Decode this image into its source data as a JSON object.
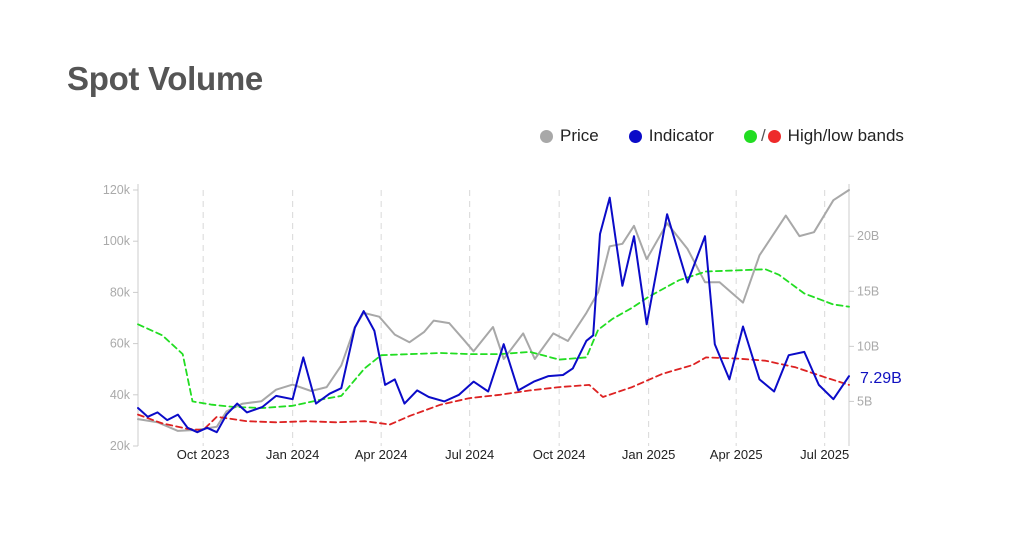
{
  "header": {
    "title": "Spot Volume"
  },
  "legend": {
    "price": "Price",
    "indicator": "Indicator",
    "bands_slash": "/",
    "bands": "High/low bands"
  },
  "colors": {
    "price": "#a8a8a8",
    "indicator": "#0b0bc8",
    "high_band": "#22dd22",
    "low_band": "#dd2222",
    "grid": "#d8d8d8",
    "axis_text": "#aaaaaa"
  },
  "chart_data": {
    "type": "line",
    "title": "Spot Volume",
    "last_value_label": "7.29B",
    "x_range": [
      "2023-07-26",
      "2025-07-26"
    ],
    "x_ticks": [
      {
        "date": "2023-10-01",
        "label": "Oct 2023"
      },
      {
        "date": "2024-01-01",
        "label": "Jan 2024"
      },
      {
        "date": "2024-04-01",
        "label": "Apr 2024"
      },
      {
        "date": "2024-07-01",
        "label": "Jul 2024"
      },
      {
        "date": "2024-10-01",
        "label": "Oct 2024"
      },
      {
        "date": "2025-01-01",
        "label": "Jan 2025"
      },
      {
        "date": "2025-04-01",
        "label": "Apr 2025"
      },
      {
        "date": "2025-07-01",
        "label": "Jul 2025"
      }
    ],
    "y_left": {
      "range": [
        20000,
        120000
      ],
      "ticks": [
        20000,
        40000,
        60000,
        80000,
        100000,
        120000
      ],
      "tick_labels": [
        "20k",
        "40k",
        "60k",
        "80k",
        "100k",
        "120k"
      ]
    },
    "y_right": {
      "range": [
        0.95,
        24.2
      ],
      "unit": "B",
      "ticks": [
        5,
        10,
        15,
        20
      ],
      "tick_labels": [
        "5B",
        "10B",
        "15B",
        "20B"
      ]
    },
    "grid": "vertical dashed at x ticks",
    "legend_position": "top-right",
    "series": [
      {
        "name": "Price",
        "axis": "left",
        "style": "solid",
        "points": [
          [
            "2023-07-26",
            30500
          ],
          [
            "2023-08-15",
            29300
          ],
          [
            "2023-09-05",
            25900
          ],
          [
            "2023-09-25",
            26300
          ],
          [
            "2023-10-15",
            27500
          ],
          [
            "2023-10-25",
            33500
          ],
          [
            "2023-11-10",
            36500
          ],
          [
            "2023-11-30",
            37500
          ],
          [
            "2023-12-15",
            42000
          ],
          [
            "2024-01-01",
            44000
          ],
          [
            "2024-01-20",
            41500
          ],
          [
            "2024-02-05",
            43000
          ],
          [
            "2024-02-20",
            51500
          ],
          [
            "2024-03-05",
            66500
          ],
          [
            "2024-03-14",
            72000
          ],
          [
            "2024-03-30",
            70500
          ],
          [
            "2024-04-15",
            63500
          ],
          [
            "2024-04-30",
            60500
          ],
          [
            "2024-05-15",
            64500
          ],
          [
            "2024-05-25",
            69000
          ],
          [
            "2024-06-10",
            68000
          ],
          [
            "2024-06-25",
            61500
          ],
          [
            "2024-07-05",
            57000
          ],
          [
            "2024-07-25",
            66500
          ],
          [
            "2024-08-05",
            54000
          ],
          [
            "2024-08-25",
            64000
          ],
          [
            "2024-09-06",
            54000
          ],
          [
            "2024-09-25",
            64000
          ],
          [
            "2024-10-10",
            61000
          ],
          [
            "2024-10-29",
            72000
          ],
          [
            "2024-11-10",
            80000
          ],
          [
            "2024-11-22",
            98000
          ],
          [
            "2024-12-05",
            99000
          ],
          [
            "2024-12-17",
            106000
          ],
          [
            "2024-12-30",
            93000
          ],
          [
            "2025-01-20",
            107000
          ],
          [
            "2025-02-10",
            97000
          ],
          [
            "2025-02-28",
            84000
          ],
          [
            "2025-03-15",
            84000
          ],
          [
            "2025-04-08",
            76000
          ],
          [
            "2025-04-25",
            94500
          ],
          [
            "2025-05-22",
            110000
          ],
          [
            "2025-06-05",
            102000
          ],
          [
            "2025-06-20",
            103500
          ],
          [
            "2025-07-10",
            116000
          ],
          [
            "2025-07-26",
            120000
          ]
        ]
      },
      {
        "name": "Indicator",
        "axis": "right",
        "style": "solid",
        "points": [
          [
            "2023-07-26",
            4.4
          ],
          [
            "2023-08-05",
            3.6
          ],
          [
            "2023-08-15",
            4.0
          ],
          [
            "2023-08-25",
            3.3
          ],
          [
            "2023-09-05",
            3.8
          ],
          [
            "2023-09-15",
            2.6
          ],
          [
            "2023-09-25",
            2.2
          ],
          [
            "2023-10-05",
            2.6
          ],
          [
            "2023-10-15",
            2.2
          ],
          [
            "2023-10-25",
            3.8
          ],
          [
            "2023-11-05",
            4.8
          ],
          [
            "2023-11-15",
            4.0
          ],
          [
            "2023-12-01",
            4.5
          ],
          [
            "2023-12-15",
            5.5
          ],
          [
            "2024-01-01",
            5.2
          ],
          [
            "2024-01-12",
            9.0
          ],
          [
            "2024-01-25",
            4.8
          ],
          [
            "2024-02-08",
            5.7
          ],
          [
            "2024-02-20",
            6.2
          ],
          [
            "2024-03-05",
            11.7
          ],
          [
            "2024-03-14",
            13.2
          ],
          [
            "2024-03-25",
            11.4
          ],
          [
            "2024-04-05",
            6.5
          ],
          [
            "2024-04-15",
            7.0
          ],
          [
            "2024-04-25",
            4.8
          ],
          [
            "2024-05-08",
            6.0
          ],
          [
            "2024-05-20",
            5.4
          ],
          [
            "2024-06-05",
            5.0
          ],
          [
            "2024-06-20",
            5.6
          ],
          [
            "2024-07-05",
            6.8
          ],
          [
            "2024-07-20",
            5.9
          ],
          [
            "2024-08-05",
            10.2
          ],
          [
            "2024-08-20",
            6.0
          ],
          [
            "2024-09-05",
            6.8
          ],
          [
            "2024-09-20",
            7.3
          ],
          [
            "2024-10-05",
            7.4
          ],
          [
            "2024-10-15",
            8.0
          ],
          [
            "2024-10-29",
            10.5
          ],
          [
            "2024-11-05",
            11.0
          ],
          [
            "2024-11-12",
            20.2
          ],
          [
            "2024-11-22",
            23.5
          ],
          [
            "2024-12-05",
            15.5
          ],
          [
            "2024-12-17",
            20.0
          ],
          [
            "2024-12-30",
            12.0
          ],
          [
            "2025-01-20",
            22.0
          ],
          [
            "2025-02-10",
            15.8
          ],
          [
            "2025-02-28",
            20.0
          ],
          [
            "2025-03-10",
            10.2
          ],
          [
            "2025-03-25",
            7.0
          ],
          [
            "2025-04-08",
            11.8
          ],
          [
            "2025-04-25",
            7.0
          ],
          [
            "2025-05-10",
            5.9
          ],
          [
            "2025-05-25",
            9.2
          ],
          [
            "2025-06-10",
            9.5
          ],
          [
            "2025-06-25",
            6.5
          ],
          [
            "2025-07-10",
            5.2
          ],
          [
            "2025-07-26",
            7.29
          ]
        ]
      },
      {
        "name": "High band",
        "axis": "right",
        "style": "dashed",
        "points": [
          [
            "2023-07-26",
            12.0
          ],
          [
            "2023-08-20",
            11.0
          ],
          [
            "2023-09-10",
            9.3
          ],
          [
            "2023-09-20",
            5.0
          ],
          [
            "2023-10-10",
            4.7
          ],
          [
            "2023-11-01",
            4.5
          ],
          [
            "2023-12-01",
            4.4
          ],
          [
            "2024-01-01",
            4.6
          ],
          [
            "2024-02-01",
            5.2
          ],
          [
            "2024-02-20",
            5.5
          ],
          [
            "2024-03-15",
            8.0
          ],
          [
            "2024-04-01",
            9.2
          ],
          [
            "2024-05-01",
            9.3
          ],
          [
            "2024-06-01",
            9.4
          ],
          [
            "2024-07-01",
            9.3
          ],
          [
            "2024-08-01",
            9.3
          ],
          [
            "2024-09-01",
            9.5
          ],
          [
            "2024-10-01",
            8.8
          ],
          [
            "2024-10-29",
            9.0
          ],
          [
            "2024-11-10",
            11.5
          ],
          [
            "2024-11-25",
            12.5
          ],
          [
            "2024-12-15",
            13.5
          ],
          [
            "2025-01-01",
            14.5
          ],
          [
            "2025-02-01",
            16.0
          ],
          [
            "2025-03-01",
            16.8
          ],
          [
            "2025-04-01",
            16.9
          ],
          [
            "2025-05-01",
            17.0
          ],
          [
            "2025-05-15",
            16.5
          ],
          [
            "2025-06-10",
            14.8
          ],
          [
            "2025-07-10",
            13.8
          ],
          [
            "2025-07-26",
            13.6
          ]
        ]
      },
      {
        "name": "Low band",
        "axis": "right",
        "style": "dashed",
        "points": [
          [
            "2023-07-26",
            3.8
          ],
          [
            "2023-08-20",
            3.0
          ],
          [
            "2023-09-15",
            2.5
          ],
          [
            "2023-10-01",
            2.4
          ],
          [
            "2023-10-15",
            3.6
          ],
          [
            "2023-11-15",
            3.2
          ],
          [
            "2023-12-15",
            3.1
          ],
          [
            "2024-01-15",
            3.2
          ],
          [
            "2024-02-15",
            3.1
          ],
          [
            "2024-03-15",
            3.2
          ],
          [
            "2024-04-10",
            2.9
          ],
          [
            "2024-05-01",
            3.7
          ],
          [
            "2024-06-01",
            4.7
          ],
          [
            "2024-07-01",
            5.3
          ],
          [
            "2024-08-01",
            5.6
          ],
          [
            "2024-09-01",
            6.0
          ],
          [
            "2024-10-01",
            6.3
          ],
          [
            "2024-11-01",
            6.5
          ],
          [
            "2024-11-15",
            5.4
          ],
          [
            "2024-12-15",
            6.3
          ],
          [
            "2025-01-15",
            7.5
          ],
          [
            "2025-02-15",
            8.3
          ],
          [
            "2025-03-01",
            9.0
          ],
          [
            "2025-04-01",
            8.9
          ],
          [
            "2025-05-01",
            8.7
          ],
          [
            "2025-06-01",
            8.1
          ],
          [
            "2025-07-01",
            7.2
          ],
          [
            "2025-07-26",
            6.5
          ]
        ]
      }
    ]
  }
}
